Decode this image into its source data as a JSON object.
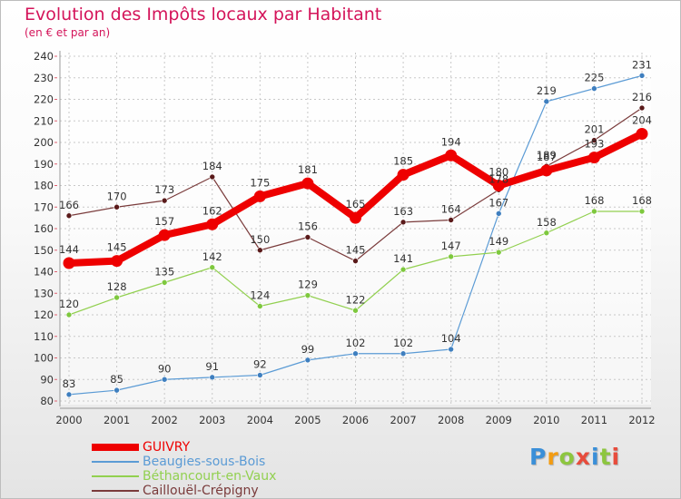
{
  "header": {
    "title": "Evolution des Impôts locaux par Habitant",
    "subtitle": "(en € et par an)"
  },
  "chart_data": {
    "type": "line",
    "title": "Evolution des Impôts locaux par Habitant",
    "subtitle": "(en € et par an)",
    "xlabel": "",
    "ylabel": "",
    "categories": [
      "2000",
      "2001",
      "2002",
      "2003",
      "2004",
      "2005",
      "2006",
      "2007",
      "2008",
      "2009",
      "2010",
      "2011",
      "2012"
    ],
    "ylim": [
      80,
      240
    ],
    "yticks": [
      80,
      90,
      100,
      110,
      120,
      130,
      140,
      150,
      160,
      170,
      180,
      190,
      200,
      210,
      220,
      230,
      240
    ],
    "grid": true,
    "legend_position": "bottom-left",
    "series": [
      {
        "name": "Beaugies-sous-Bois",
        "color": "#5b9bd5",
        "marker": "#3f7fbf",
        "width": 1.2,
        "values": [
          83,
          85,
          90,
          91,
          92,
          99,
          102,
          102,
          104,
          167,
          219,
          225,
          231
        ]
      },
      {
        "name": "Béthancourt-en-Vaux",
        "color": "#92d050",
        "marker": "#7ec83e",
        "width": 1.2,
        "values": [
          120,
          128,
          135,
          142,
          124,
          129,
          122,
          141,
          147,
          149,
          158,
          168,
          168
        ]
      },
      {
        "name": "Caillouël-Crépigny",
        "color": "#7a3b3b",
        "marker": "#5a1a1a",
        "width": 1.2,
        "values": [
          166,
          170,
          173,
          184,
          150,
          156,
          145,
          163,
          164,
          178,
          189,
          201,
          216
        ]
      },
      {
        "name": "GUIVRY",
        "color": "#ee0000",
        "marker": "#ee0000",
        "width": 8,
        "values": [
          144,
          145,
          157,
          162,
          175,
          181,
          165,
          185,
          194,
          180,
          187,
          193,
          204
        ]
      }
    ],
    "legend_order": [
      "GUIVRY",
      "Beaugies-sous-Bois",
      "Béthancourt-en-Vaux",
      "Caillouël-Crépigny"
    ]
  },
  "legend": {
    "items": [
      {
        "label": "GUIVRY",
        "color": "#ee0000"
      },
      {
        "label": "Beaugies-sous-Bois",
        "color": "#5b9bd5"
      },
      {
        "label": "Béthancourt-en-Vaux",
        "color": "#92d050"
      },
      {
        "label": "Caillouël-Crépigny",
        "color": "#7a3b3b"
      }
    ]
  },
  "logo": {
    "letters": [
      "P",
      "r",
      "o",
      "x",
      "i",
      "t",
      "i"
    ],
    "colors": [
      "#3a8fd8",
      "#f39c12",
      "#8dc63f",
      "#e74c3c",
      "#3a8fd8",
      "#8dc63f",
      "#e74c3c"
    ]
  }
}
